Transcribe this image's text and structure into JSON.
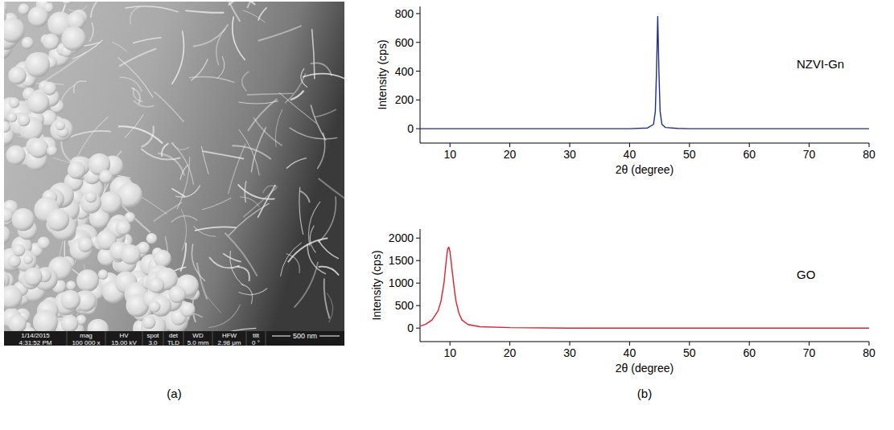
{
  "panel_labels": [
    "(a)",
    "(b)"
  ],
  "sem_image": {
    "info_bar": [
      [
        "1/14/2015",
        "4:31:52 PM"
      ],
      [
        "mag",
        "100 000 x"
      ],
      [
        "HV",
        "15.00 kV"
      ],
      [
        "spot",
        "3.0"
      ],
      [
        "det",
        "TLD"
      ],
      [
        "WD",
        "5.0 mm"
      ],
      [
        "HFW",
        "2.98 μm"
      ],
      [
        "tilt",
        "0 °"
      ]
    ],
    "scale_bar": "500 nm"
  },
  "chart_data": [
    {
      "type": "line",
      "x_label": "2θ (degree)",
      "y_label": "Intensity (cps)",
      "xlim": [
        5,
        80
      ],
      "ylim": [
        -100,
        850
      ],
      "xticks": [
        10,
        20,
        30,
        40,
        50,
        60,
        70,
        80
      ],
      "yticks": [
        0,
        200,
        400,
        600,
        800
      ],
      "grid": false,
      "legend": "right",
      "x": [
        5,
        10,
        20,
        30,
        40,
        43,
        44,
        44.3,
        44.5,
        44.7,
        44.9,
        45.1,
        45.4,
        46,
        48,
        50,
        60,
        70,
        80
      ],
      "series": [
        {
          "name": "NZVI-Gn",
          "color": "#1f2d8a",
          "values": [
            0,
            0,
            0,
            0,
            0,
            5,
            30,
            120,
            400,
            780,
            400,
            120,
            30,
            8,
            2,
            0,
            0,
            0,
            0
          ]
        }
      ]
    },
    {
      "type": "line",
      "x_label": "2θ (degree)",
      "y_label": "Intensity (cps)",
      "xlim": [
        5,
        80
      ],
      "ylim": [
        -300,
        2200
      ],
      "xticks": [
        10,
        20,
        30,
        40,
        50,
        60,
        70,
        80
      ],
      "yticks": [
        0,
        500,
        1000,
        1500,
        2000
      ],
      "grid": false,
      "legend": "right",
      "x": [
        5,
        6,
        7,
        8,
        8.5,
        9,
        9.3,
        9.6,
        9.8,
        10,
        10.3,
        10.7,
        11,
        11.5,
        12,
        13,
        15,
        20,
        30,
        40,
        50,
        60,
        70,
        80
      ],
      "series": [
        {
          "name": "GO",
          "color": "#e0202a",
          "values": [
            40,
            90,
            180,
            380,
            600,
            1000,
            1400,
            1750,
            1800,
            1700,
            1350,
            900,
            600,
            330,
            180,
            80,
            30,
            10,
            0,
            0,
            0,
            0,
            0,
            0
          ]
        }
      ]
    }
  ]
}
